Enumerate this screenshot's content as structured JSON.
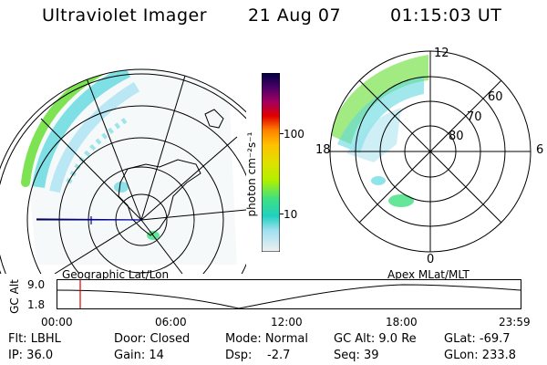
{
  "header": {
    "instrument": "Ultraviolet Imager",
    "date": "21 Aug 07",
    "time": "01:15:03 UT"
  },
  "colorbar": {
    "unit": "photon cm⁻²s⁻¹",
    "ticks": [
      "100",
      "10"
    ],
    "colors": [
      "#000040",
      "#2a0048",
      "#4a0066",
      "#7a0070",
      "#a00060",
      "#c80030",
      "#e00000",
      "#ff4000",
      "#ff8000",
      "#ffc000",
      "#e0e000",
      "#b0f000",
      "#70e040",
      "#40e080",
      "#20d0c0",
      "#60d8e0",
      "#a0e0f0",
      "#d8ecf0",
      "#f0f0f0"
    ]
  },
  "apex_plot": {
    "labels": {
      "top": "12",
      "bottom": "0",
      "left": "18",
      "right": "6"
    },
    "lat_labels": [
      "60",
      "70",
      "80"
    ]
  },
  "timeline": {
    "left_label": "Geographic Lat/Lon",
    "right_label": "Apex MLat/MLT",
    "y_label": "GC Alt",
    "y_ticks": [
      "9.0",
      "1.8"
    ],
    "x_ticks": [
      "00:00",
      "06:00",
      "12:00",
      "18:00",
      "23:59"
    ]
  },
  "footer": {
    "flt": "Flt: LBHL",
    "ip": "IP: 36.0",
    "door": "Door: Closed",
    "gain": "Gain: 14",
    "mode": "Mode: Normal",
    "dsp_label": "Dsp:",
    "dsp_value": "-2.7",
    "gcalt": "GC Alt: 9.0 Re",
    "seq": "Seq: 39",
    "glat": "GLat: -69.7",
    "glon": "GLon: 233.8"
  }
}
